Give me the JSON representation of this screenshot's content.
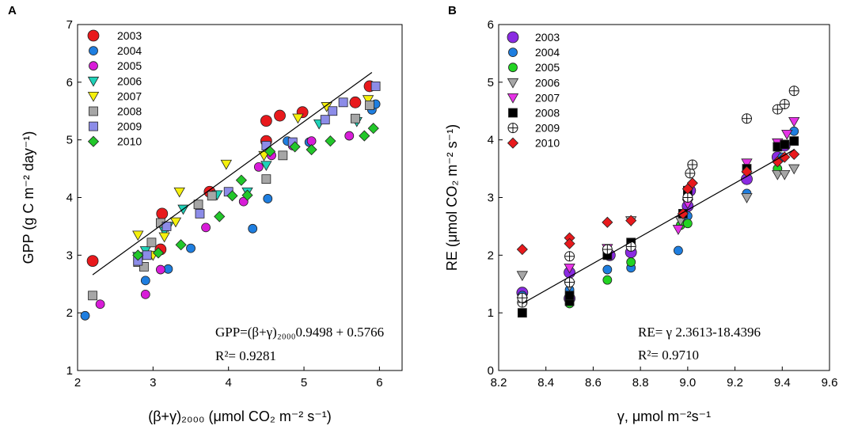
{
  "chart_data": [
    {
      "type": "scatter",
      "panel_label": "A",
      "ylabel": "GPP (g C m⁻² day⁻¹)",
      "xlabel": "(β+γ)₂₀₀₀ (μmol CO₂ m⁻² s⁻¹)",
      "xlim": [
        2,
        6.3
      ],
      "ylim": [
        1,
        7
      ],
      "xticks": [
        "2",
        "3",
        "4",
        "5",
        "6"
      ],
      "yticks": [
        "1",
        "2",
        "3",
        "4",
        "5",
        "6",
        "7"
      ],
      "equation": "GPP=(β+γ)₂₀₀₀0.9498 + 0.5766",
      "r2": "R²= 0.9281",
      "fit_line": {
        "x": [
          2.2,
          5.9
        ],
        "y": [
          2.66,
          6.17
        ]
      },
      "series": [
        {
          "name": "2003",
          "marker": "circle-big",
          "color": "#e8191c",
          "x": [
            2.2,
            3.1,
            3.12,
            3.75,
            4.5,
            4.5,
            4.68,
            4.98,
            5.68,
            5.87
          ],
          "y": [
            2.9,
            3.1,
            3.72,
            4.1,
            5.33,
            4.98,
            5.42,
            5.48,
            5.65,
            5.93
          ]
        },
        {
          "name": "2004",
          "marker": "circle",
          "color": "#1e7ee0",
          "x": [
            2.1,
            2.9,
            3.2,
            3.5,
            4.32,
            4.52,
            4.78,
            5.07,
            5.9,
            5.95
          ],
          "y": [
            1.95,
            2.56,
            2.76,
            3.12,
            3.46,
            3.98,
            4.98,
            4.96,
            5.52,
            5.62
          ]
        },
        {
          "name": "2005",
          "marker": "circle",
          "color": "#d81cd8",
          "x": [
            2.3,
            2.9,
            3.1,
            3.7,
            4.2,
            4.4,
            4.57,
            4.85,
            5.1,
            5.6
          ],
          "y": [
            2.15,
            2.32,
            2.75,
            3.48,
            3.93,
            4.53,
            4.73,
            4.9,
            4.98,
            5.07
          ]
        },
        {
          "name": "2006",
          "marker": "tri-down",
          "color": "#1ed2b8",
          "x": [
            2.8,
            2.9,
            3.15,
            3.2,
            3.4,
            3.85,
            4.25,
            4.5,
            5.2,
            5.7
          ],
          "y": [
            2.98,
            3.08,
            3.42,
            3.5,
            3.8,
            4.05,
            4.1,
            4.56,
            5.28,
            5.32
          ]
        },
        {
          "name": "2007",
          "marker": "tri-down",
          "color": "#f5f00c",
          "x": [
            2.8,
            3.0,
            3.15,
            3.3,
            3.35,
            3.97,
            4.47,
            4.92,
            5.3,
            5.85
          ],
          "y": [
            3.35,
            3.0,
            3.32,
            3.58,
            4.1,
            4.58,
            4.73,
            5.38,
            5.58,
            5.7
          ]
        },
        {
          "name": "2008",
          "marker": "square",
          "color": "#a6a6a6",
          "x": [
            2.2,
            2.8,
            2.88,
            2.98,
            3.1,
            3.6,
            3.78,
            4.5,
            4.72,
            5.68,
            5.87
          ],
          "y": [
            2.3,
            2.88,
            2.8,
            3.22,
            3.56,
            3.88,
            4.03,
            4.32,
            4.73,
            5.37,
            5.6
          ]
        },
        {
          "name": "2009",
          "marker": "square",
          "color": "#8c8ce8",
          "x": [
            2.8,
            2.92,
            3.18,
            3.62,
            4.0,
            4.5,
            4.85,
            5.28,
            5.38,
            5.52,
            5.95
          ],
          "y": [
            2.9,
            3.0,
            3.5,
            3.72,
            4.1,
            4.9,
            4.96,
            5.35,
            5.5,
            5.65,
            5.93
          ]
        },
        {
          "name": "2010",
          "marker": "diamond",
          "color": "#22c72a",
          "x": [
            2.8,
            3.07,
            3.37,
            3.88,
            4.05,
            4.17,
            4.25,
            4.55,
            4.88,
            5.1,
            5.35,
            5.8,
            5.92
          ],
          "y": [
            3.0,
            3.04,
            3.18,
            3.67,
            4.03,
            4.3,
            4.04,
            4.8,
            4.88,
            4.83,
            4.98,
            5.07,
            5.2
          ]
        }
      ]
    },
    {
      "type": "scatter",
      "panel_label": "B",
      "ylabel": "RE (μmol CO₂ m⁻² s⁻¹)",
      "xlabel": "γ, μmol m⁻²s⁻¹",
      "xlim": [
        8.2,
        9.6
      ],
      "ylim": [
        0,
        6
      ],
      "xticks": [
        "8.2",
        "8.4",
        "8.6",
        "8.8",
        "9.0",
        "9.2",
        "9.4",
        "9.6"
      ],
      "yticks": [
        "0",
        "1",
        "2",
        "3",
        "4",
        "5",
        "6"
      ],
      "equation": "RE= γ 2.3613-18.4396",
      "r2": "R²= 0.9710",
      "fit_line": {
        "x": [
          8.3,
          9.45
        ],
        "y": [
          1.16,
          3.83
        ]
      },
      "series": [
        {
          "name": "2003",
          "marker": "circle-big",
          "color": "#8a2be2",
          "x": [
            8.3,
            8.5,
            8.5,
            8.67,
            8.76,
            8.98,
            9.0,
            9.01,
            9.25,
            9.38,
            9.41
          ],
          "y": [
            1.35,
            1.7,
            1.25,
            2.0,
            2.05,
            2.65,
            2.85,
            3.12,
            3.32,
            3.7,
            3.9
          ]
        },
        {
          "name": "2004",
          "marker": "circle",
          "color": "#1e7ee0",
          "x": [
            8.3,
            8.5,
            8.66,
            8.76,
            8.96,
            9.0,
            9.25,
            9.4,
            9.45
          ],
          "y": [
            1.3,
            1.4,
            1.75,
            1.78,
            2.08,
            2.68,
            3.07,
            3.7,
            4.15
          ]
        },
        {
          "name": "2005",
          "marker": "circle",
          "color": "#22d422",
          "x": [
            8.5,
            8.5,
            8.66,
            8.76,
            8.97,
            9.0,
            9.38
          ],
          "y": [
            1.16,
            1.3,
            1.57,
            1.88,
            2.52,
            2.55,
            3.5
          ]
        },
        {
          "name": "2006",
          "marker": "tri-down",
          "color": "#a6a6a6",
          "x": [
            8.3,
            8.5,
            8.76,
            8.97,
            9.0,
            9.25,
            9.38,
            9.41,
            9.45
          ],
          "y": [
            1.65,
            1.47,
            2.6,
            2.6,
            2.9,
            3.0,
            3.4,
            3.4,
            3.5
          ]
        },
        {
          "name": "2007",
          "marker": "tri-down",
          "color": "#e632e6",
          "x": [
            8.3,
            8.5,
            8.66,
            8.96,
            9.0,
            9.25,
            9.38,
            9.42,
            9.45
          ],
          "y": [
            1.2,
            1.78,
            2.12,
            2.45,
            2.9,
            3.6,
            3.95,
            4.1,
            4.32
          ]
        },
        {
          "name": "2008",
          "marker": "square",
          "color": "#000000",
          "x": [
            8.3,
            8.5,
            8.5,
            8.66,
            8.76,
            8.98,
            9.0,
            9.25,
            9.38,
            9.41,
            9.45
          ],
          "y": [
            1.0,
            1.2,
            1.3,
            2.0,
            2.22,
            2.72,
            3.12,
            3.5,
            3.88,
            3.92,
            3.98
          ]
        },
        {
          "name": "2009",
          "marker": "circle-plus",
          "color": "#ffffff",
          "x": [
            8.3,
            8.3,
            8.5,
            8.5,
            8.66,
            8.76,
            9.0,
            9.01,
            9.02,
            9.25,
            9.38,
            9.41,
            9.45
          ],
          "y": [
            1.18,
            1.26,
            1.53,
            1.98,
            2.1,
            2.15,
            3.0,
            3.42,
            3.57,
            4.37,
            4.53,
            4.62,
            4.85
          ]
        },
        {
          "name": "2010",
          "marker": "diamond",
          "color": "#e8191c",
          "x": [
            8.3,
            8.5,
            8.5,
            8.66,
            8.76,
            8.98,
            9.0,
            9.02,
            9.25,
            9.38,
            9.41,
            9.45
          ],
          "y": [
            2.1,
            2.3,
            2.2,
            2.57,
            2.6,
            2.72,
            3.15,
            3.25,
            3.45,
            3.62,
            3.7,
            3.75
          ]
        }
      ]
    }
  ]
}
